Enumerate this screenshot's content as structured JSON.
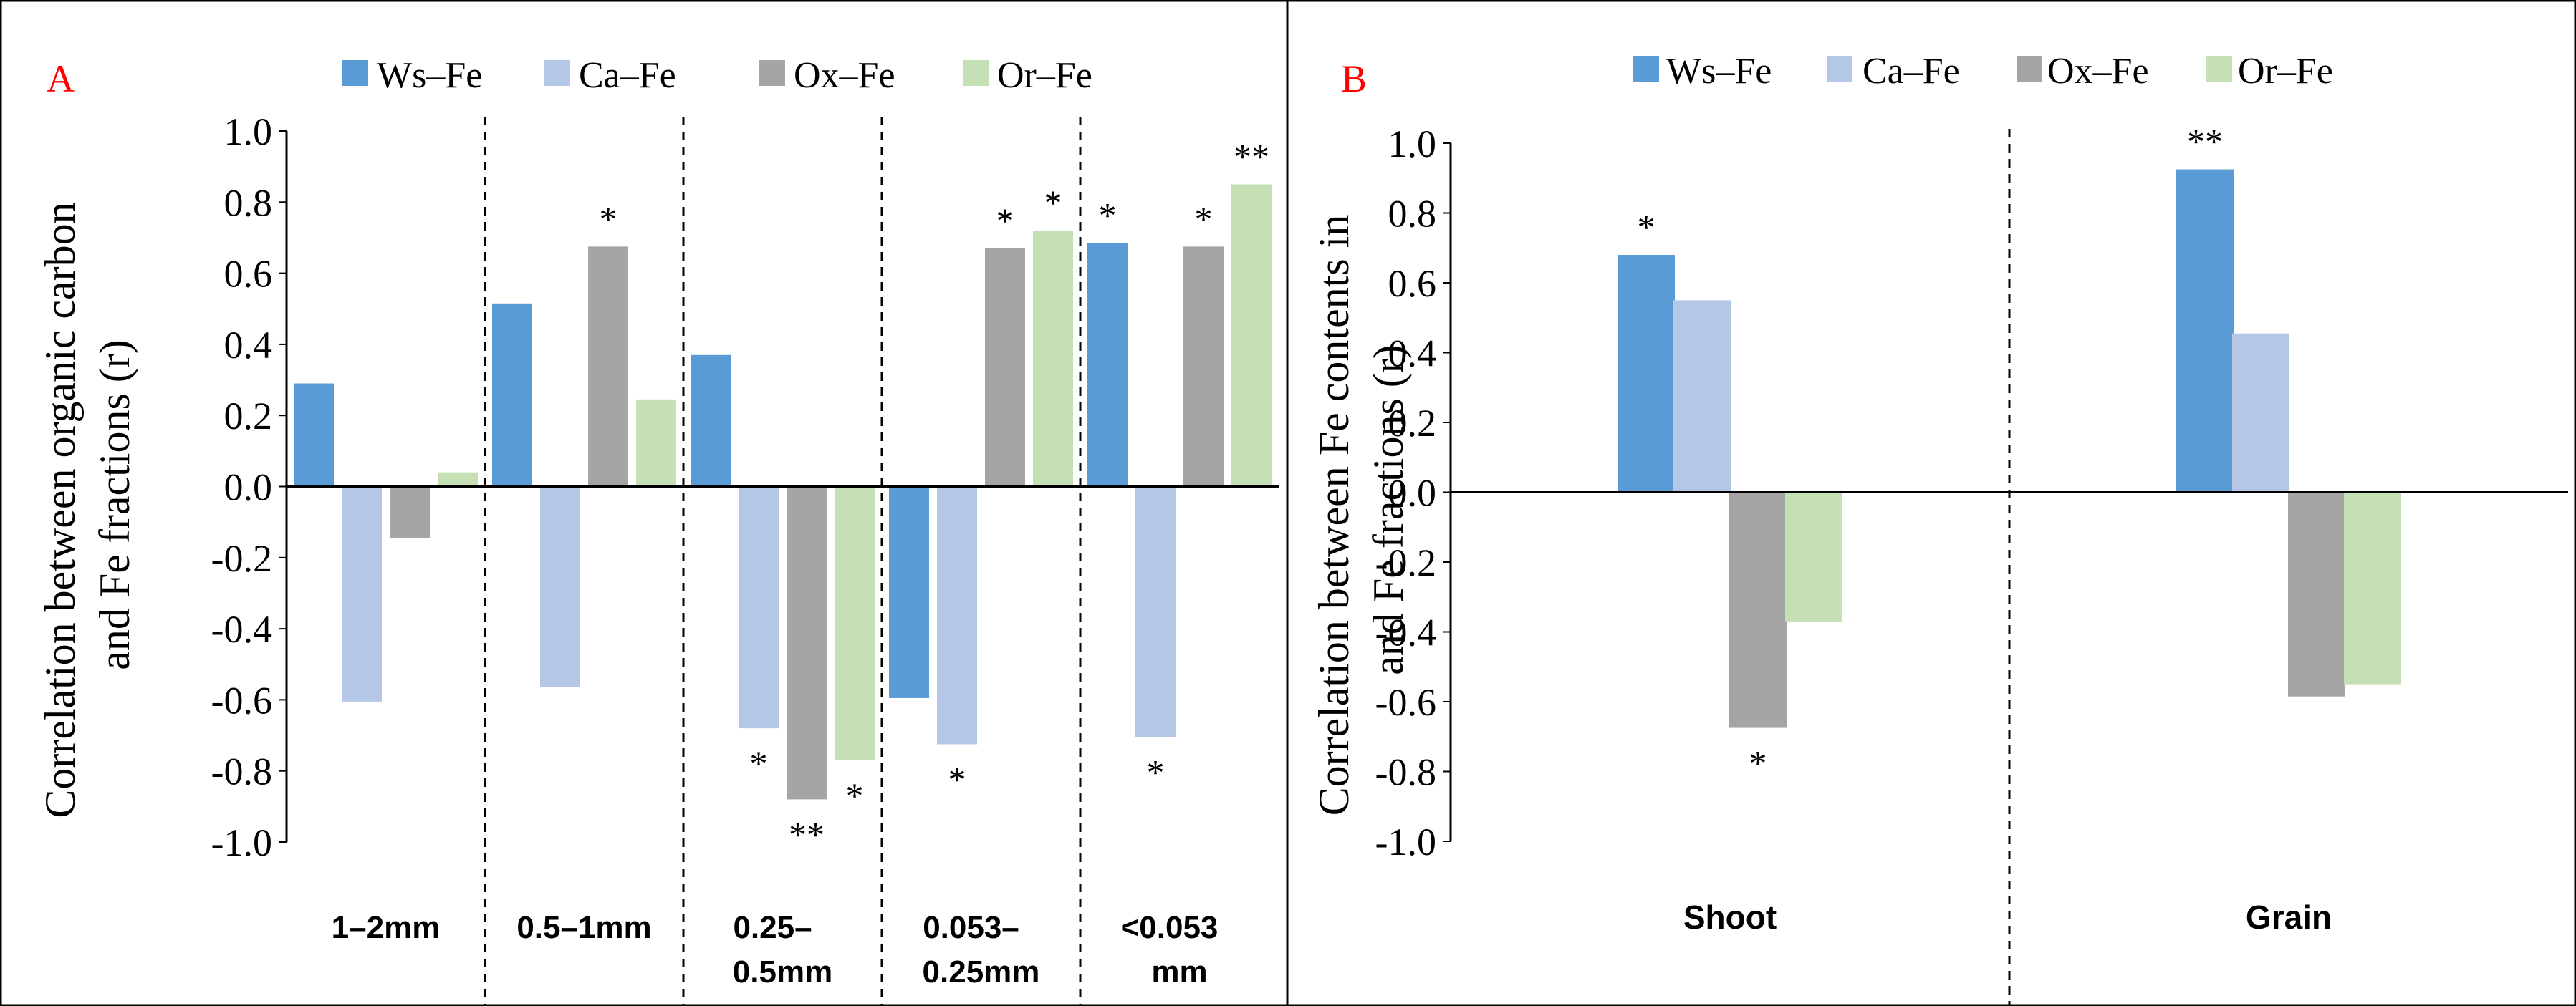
{
  "colors": {
    "Ws-Fe": "#5b9bd5",
    "Ca-Fe": "#b4c7e7",
    "Ox-Fe": "#a5a5a5",
    "Or-Fe": "#c5e0b4",
    "panel_letter": "#ff0000"
  },
  "chart_data": [
    {
      "type": "bar",
      "panel": "A",
      "ylabel_lines": [
        "Correlation between organic carbon",
        "and Fe fractions (r)"
      ],
      "ylim": [
        -1.0,
        1.0
      ],
      "y_ticks": [
        "1.0",
        "0.8",
        "0.6",
        "0.4",
        "0.2",
        "0.0",
        "-0.2",
        "-0.4",
        "-0.6",
        "-0.8",
        "-1.0"
      ],
      "legend": [
        "Ws–Fe",
        "Ca–Fe",
        "Ox–Fe",
        "Or–Fe"
      ],
      "categories": [
        {
          "lines": [
            "1–2mm"
          ]
        },
        {
          "lines": [
            "0.5–1mm"
          ]
        },
        {
          "lines": [
            "0.25–",
            "0.5mm"
          ]
        },
        {
          "lines": [
            "0.053–",
            "0.25mm"
          ]
        },
        {
          "lines": [
            "<0.053",
            "mm"
          ]
        }
      ],
      "series": [
        {
          "name": "Ws–Fe",
          "values": [
            0.29,
            0.515,
            0.37,
            -0.595,
            0.685
          ],
          "significance": [
            "",
            "",
            "",
            "",
            "*"
          ]
        },
        {
          "name": "Ca–Fe",
          "values": [
            -0.605,
            -0.565,
            -0.68,
            -0.725,
            -0.705
          ],
          "significance": [
            "",
            "",
            "*",
            "*",
            "*"
          ]
        },
        {
          "name": "Ox–Fe",
          "values": [
            -0.145,
            0.675,
            -0.88,
            0.67,
            0.675
          ],
          "significance": [
            "",
            "*",
            "**",
            "*",
            "*"
          ]
        },
        {
          "name": "Or–Fe",
          "values": [
            0.04,
            0.245,
            -0.77,
            0.72,
            0.85
          ],
          "significance": [
            "",
            "",
            "*",
            "*",
            "**"
          ]
        }
      ]
    },
    {
      "type": "bar",
      "panel": "B",
      "ylabel_lines": [
        "Correlation between Fe contents in",
        "and Fe fractions (r)"
      ],
      "ylim": [
        -1.0,
        1.0
      ],
      "y_ticks": [
        "1.0",
        "0.8",
        "0.6",
        "0.4",
        "0.2",
        "0.0",
        "-0.2",
        "-0.4",
        "-0.6",
        "-0.8",
        "-1.0"
      ],
      "legend": [
        "Ws–Fe",
        "Ca–Fe",
        "Ox–Fe",
        "Or–Fe"
      ],
      "categories": [
        {
          "lines": [
            "Shoot"
          ]
        },
        {
          "lines": [
            "Grain"
          ]
        }
      ],
      "series": [
        {
          "name": "Ws–Fe",
          "values": [
            0.68,
            0.925
          ],
          "significance": [
            "*",
            "**"
          ]
        },
        {
          "name": "Ca–Fe",
          "values": [
            0.55,
            0.455
          ],
          "significance": [
            "",
            ""
          ]
        },
        {
          "name": "Ox–Fe",
          "values": [
            -0.675,
            -0.585
          ],
          "significance": [
            "*",
            ""
          ]
        },
        {
          "name": "Or–Fe",
          "values": [
            -0.37,
            -0.55
          ],
          "significance": [
            "",
            ""
          ]
        }
      ]
    }
  ]
}
